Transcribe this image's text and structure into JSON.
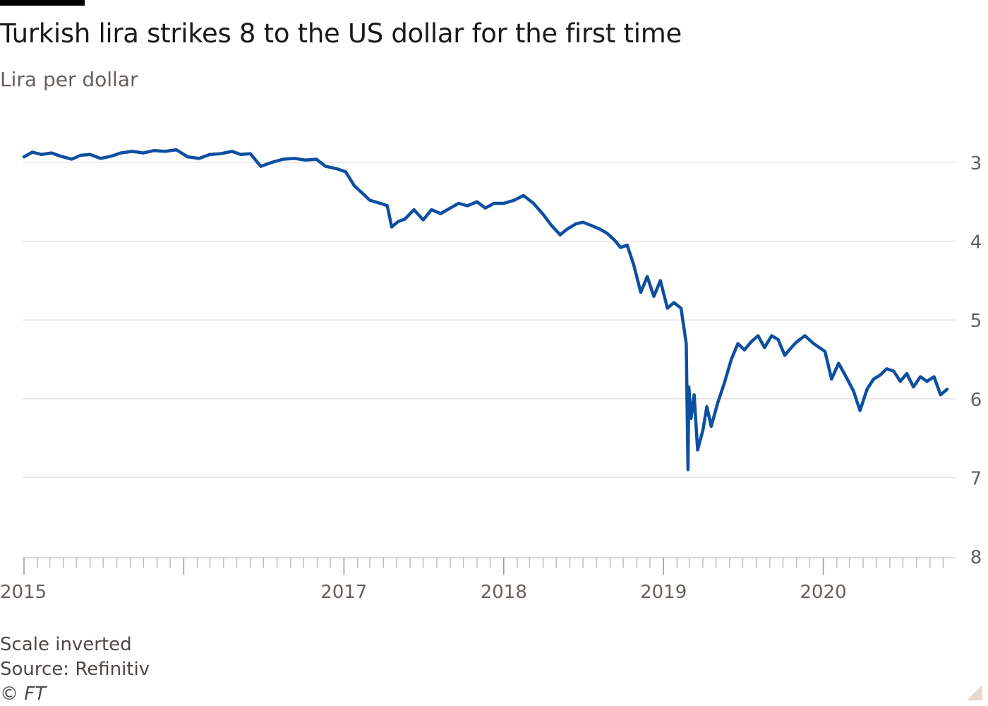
{
  "title": "Turkish lira strikes 8 to the US dollar for the first time",
  "subtitle": "Lira per dollar",
  "footer": {
    "note": "Scale inverted",
    "source": "Source: Refinitiv",
    "copyright": "© FT"
  },
  "colors": {
    "line": "#0d4fa0",
    "grid": "#e5e5e5",
    "axis": "#66605c",
    "corner": "#e6d9ce"
  },
  "chart_data": {
    "type": "line",
    "title": "Turkish lira strikes 8 to the US dollar for the first time",
    "ylabel": "Lira per dollar",
    "y_inverted": true,
    "ylim": [
      2.9,
      8.0
    ],
    "y_ticks": [
      "3",
      "4",
      "5",
      "6",
      "7",
      "8"
    ],
    "x_tick_labels": [
      "2015",
      "2017",
      "2018",
      "2019",
      "2020"
    ],
    "x_range": [
      "2015-01-01",
      "2020-10-26"
    ],
    "grid": true,
    "legend": "none",
    "series": [
      {
        "points": [
          [
            "2015-01-01",
            2.93
          ],
          [
            "2015-01-20",
            2.87
          ],
          [
            "2015-02-10",
            2.9
          ],
          [
            "2015-03-05",
            2.88
          ],
          [
            "2015-03-25",
            2.92
          ],
          [
            "2015-04-20",
            2.96
          ],
          [
            "2015-05-10",
            2.91
          ],
          [
            "2015-06-01",
            2.9
          ],
          [
            "2015-06-25",
            2.95
          ],
          [
            "2015-07-20",
            2.92
          ],
          [
            "2015-08-10",
            2.88
          ],
          [
            "2015-09-05",
            2.86
          ],
          [
            "2015-10-01",
            2.88
          ],
          [
            "2015-10-25",
            2.85
          ],
          [
            "2015-11-20",
            2.86
          ],
          [
            "2015-12-15",
            2.84
          ],
          [
            "2016-01-10",
            2.93
          ],
          [
            "2016-02-05",
            2.95
          ],
          [
            "2016-03-01",
            2.9
          ],
          [
            "2016-03-25",
            2.89
          ],
          [
            "2016-04-20",
            2.86
          ],
          [
            "2016-05-10",
            2.9
          ],
          [
            "2016-06-01",
            2.89
          ],
          [
            "2016-06-25",
            3.05
          ],
          [
            "2016-07-20",
            3.0
          ],
          [
            "2016-08-15",
            2.96
          ],
          [
            "2016-09-10",
            2.95
          ],
          [
            "2016-10-05",
            2.97
          ],
          [
            "2016-10-30",
            2.96
          ],
          [
            "2016-11-20",
            3.05
          ],
          [
            "2016-12-15",
            3.08
          ],
          [
            "2017-01-05",
            3.12
          ],
          [
            "2017-01-25",
            3.3
          ],
          [
            "2017-02-10",
            3.38
          ],
          [
            "2017-03-01",
            3.48
          ],
          [
            "2017-03-25",
            3.52
          ],
          [
            "2017-04-10",
            3.55
          ],
          [
            "2017-04-20",
            3.82
          ],
          [
            "2017-05-05",
            3.75
          ],
          [
            "2017-05-20",
            3.72
          ],
          [
            "2017-06-10",
            3.6
          ],
          [
            "2017-07-01",
            3.73
          ],
          [
            "2017-07-20",
            3.6
          ],
          [
            "2017-08-10",
            3.65
          ],
          [
            "2017-09-01",
            3.58
          ],
          [
            "2017-09-20",
            3.52
          ],
          [
            "2017-10-10",
            3.55
          ],
          [
            "2017-11-01",
            3.5
          ],
          [
            "2017-11-20",
            3.58
          ],
          [
            "2017-12-10",
            3.52
          ],
          [
            "2018-01-01",
            3.52
          ],
          [
            "2018-01-25",
            3.48
          ],
          [
            "2018-02-15",
            3.42
          ],
          [
            "2018-03-10",
            3.52
          ],
          [
            "2018-04-01",
            3.66
          ],
          [
            "2018-04-20",
            3.8
          ],
          [
            "2018-05-10",
            3.92
          ],
          [
            "2018-05-25",
            3.85
          ],
          [
            "2018-06-15",
            3.78
          ],
          [
            "2018-07-01",
            3.76
          ],
          [
            "2018-07-20",
            3.8
          ],
          [
            "2018-08-10",
            3.85
          ],
          [
            "2018-08-25",
            3.9
          ],
          [
            "2018-09-10",
            3.98
          ],
          [
            "2018-09-25",
            4.08
          ],
          [
            "2018-10-10",
            4.05
          ],
          [
            "2018-10-25",
            4.3
          ],
          [
            "2018-11-10",
            4.65
          ],
          [
            "2018-11-25",
            4.45
          ],
          [
            "2018-12-10",
            4.7
          ],
          [
            "2018-12-25",
            4.5
          ],
          [
            "2019-01-10",
            4.85
          ],
          [
            "2019-01-25",
            4.78
          ],
          [
            "2019-02-10",
            4.85
          ],
          [
            "2019-02-22",
            5.3
          ],
          [
            "2019-02-26",
            6.9
          ],
          [
            "2019-02-28",
            5.85
          ],
          [
            "2019-03-05",
            6.25
          ],
          [
            "2019-03-12",
            5.95
          ],
          [
            "2019-03-20",
            6.65
          ],
          [
            "2019-04-01",
            6.4
          ],
          [
            "2019-04-10",
            6.1
          ],
          [
            "2019-04-20",
            6.35
          ],
          [
            "2019-05-05",
            6.05
          ],
          [
            "2019-05-20",
            5.8
          ],
          [
            "2019-06-05",
            5.5
          ],
          [
            "2019-06-20",
            5.3
          ],
          [
            "2019-07-05",
            5.38
          ],
          [
            "2019-07-20",
            5.28
          ],
          [
            "2019-08-05",
            5.2
          ],
          [
            "2019-08-20",
            5.35
          ],
          [
            "2019-09-05",
            5.2
          ],
          [
            "2019-09-20",
            5.25
          ],
          [
            "2019-10-05",
            5.45
          ],
          [
            "2019-10-20",
            5.35
          ],
          [
            "2019-11-01",
            5.28
          ],
          [
            "2019-11-20",
            5.2
          ],
          [
            "2019-12-10",
            5.3
          ],
          [
            "2020-01-05",
            5.4
          ],
          [
            "2020-01-20",
            5.75
          ],
          [
            "2020-02-05",
            5.55
          ],
          [
            "2020-02-20",
            5.7
          ],
          [
            "2020-03-10",
            5.9
          ],
          [
            "2020-03-25",
            6.15
          ],
          [
            "2020-04-10",
            5.88
          ],
          [
            "2020-04-25",
            5.75
          ],
          [
            "2020-05-10",
            5.7
          ],
          [
            "2020-05-25",
            5.62
          ],
          [
            "2020-06-10",
            5.65
          ],
          [
            "2020-06-25",
            5.78
          ],
          [
            "2020-07-10",
            5.68
          ],
          [
            "2020-07-25",
            5.85
          ],
          [
            "2020-08-10",
            5.72
          ],
          [
            "2020-08-25",
            5.78
          ],
          [
            "2020-09-10",
            5.72
          ],
          [
            "2020-09-25",
            5.95
          ],
          [
            "2020-10-10",
            5.88
          ]
        ]
      }
    ]
  }
}
